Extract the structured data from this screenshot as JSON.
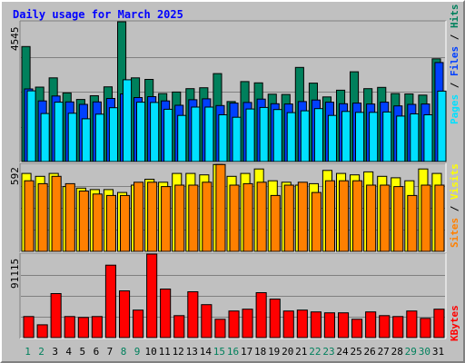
{
  "chart_data": {
    "type": "bar",
    "title": "Daily usage for March 2025",
    "categories": [
      "1",
      "2",
      "3",
      "4",
      "5",
      "6",
      "7",
      "8",
      "9",
      "10",
      "11",
      "12",
      "13",
      "14",
      "15",
      "16",
      "17",
      "18",
      "19",
      "20",
      "21",
      "22",
      "23",
      "24",
      "25",
      "26",
      "27",
      "28",
      "29",
      "30",
      "31"
    ],
    "weekend_days": [
      "1",
      "2",
      "8",
      "9",
      "15",
      "16",
      "22",
      "23",
      "29",
      "30"
    ],
    "panels": [
      {
        "name": "hits-files-pages",
        "max_label": "4545",
        "ylim": [
          0,
          4545
        ],
        "grid": true,
        "series": [
          {
            "name": "Hits",
            "color": "#00805c",
            "values": [
              3740,
              2420,
              2720,
              2230,
              2020,
              2140,
              2430,
              4545,
              2720,
              2670,
              2210,
              2260,
              2370,
              2400,
              2860,
              1950,
              2600,
              2560,
              2190,
              2180,
              3060,
              2550,
              2100,
              2320,
              2920,
              2370,
              2410,
              2210,
              2200,
              2160,
              3340
            ]
          },
          {
            "name": "Files",
            "color": "#0040ff",
            "values": [
              2360,
              1970,
              2130,
              1940,
              1860,
              1940,
              2050,
              2200,
              2080,
              2110,
              1970,
              1830,
              2010,
              2040,
              1820,
              1900,
              1920,
              2030,
              1880,
              1870,
              1950,
              2000,
              1930,
              1880,
              1900,
              1870,
              1930,
              1810,
              1860,
              1870,
              3220
            ]
          },
          {
            "name": "Pages",
            "color": "#00e0ff",
            "values": [
              2300,
              1560,
              1930,
              1570,
              1390,
              1540,
              1750,
              2660,
              1930,
              1920,
              1700,
              1500,
              1770,
              1770,
              1520,
              1440,
              1710,
              1760,
              1690,
              1590,
              1650,
              1720,
              1500,
              1630,
              1600,
              1600,
              1610,
              1480,
              1550,
              1520,
              2290
            ]
          }
        ]
      },
      {
        "name": "visits-sites",
        "max_label": "592",
        "ylim": [
          0,
          592
        ],
        "grid": true,
        "series": [
          {
            "name": "Visits",
            "color": "#ffff00",
            "values": [
              530,
              510,
              530,
              440,
              430,
              420,
              420,
              400,
              450,
              490,
              470,
              530,
              530,
              520,
              590,
              510,
              530,
              560,
              480,
              470,
              450,
              460,
              550,
              530,
              520,
              540,
              510,
              500,
              480,
              560,
              530
            ]
          },
          {
            "name": "Sites",
            "color": "#ff8000",
            "values": [
              480,
              460,
              510,
              460,
              410,
              390,
              380,
              380,
              470,
              470,
              440,
              450,
              450,
              470,
              590,
              450,
              460,
              470,
              380,
              450,
              470,
              400,
              480,
              480,
              480,
              450,
              450,
              440,
              380,
              450,
              450
            ]
          }
        ]
      },
      {
        "name": "kbytes",
        "max_label": "91115",
        "ylim": [
          0,
          91115
        ],
        "grid": true,
        "series": [
          {
            "name": "KBytes",
            "color": "#ff0000",
            "values": [
              23000,
              14000,
              48000,
              23000,
              22000,
              23000,
              79000,
              51000,
              30000,
              91115,
              53000,
              24000,
              50000,
              36000,
              20000,
              29000,
              31000,
              49000,
              42000,
              29000,
              30000,
              28000,
              27000,
              27000,
              20000,
              28000,
              24000,
              23000,
              29000,
              21000,
              31000
            ]
          }
        ]
      }
    ]
  }
}
